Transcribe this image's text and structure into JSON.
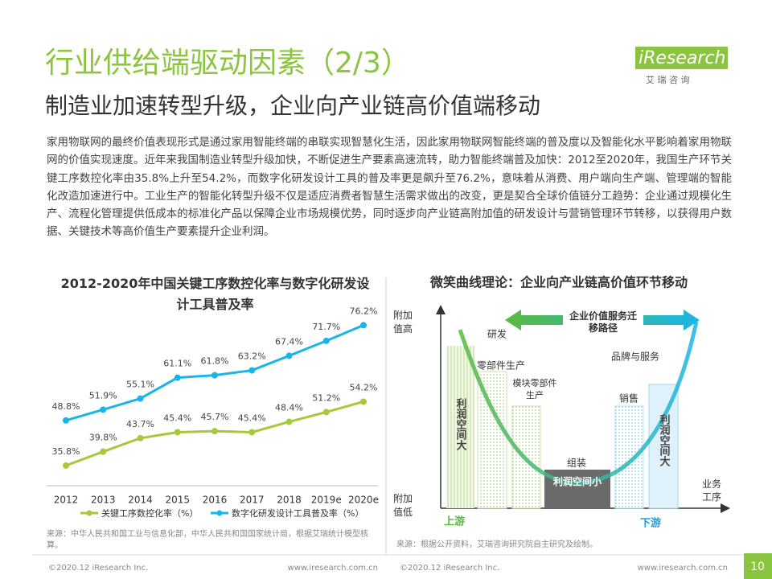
{
  "header": {
    "title": "行业供给端驱动因素（2/3）",
    "subtitle": "制造业加速转型升级，企业向产业链高价值端移动",
    "logo": "iResearch",
    "logo_sub": "艾 瑞 咨 询"
  },
  "body": "家用物联网的最终价值表现形式是通过家用智能终端的串联实现智慧化生活，因此家用物联网智能终端的普及度以及智能化水平影响着家用物联网的价值实现速度。近年来我国制造业转型升级加快，不断促进生产要素高速流转，助力智能终端普及加快：2012至2020年，我国生产环节关键工序数控化率由35.8%上升至54.2%，而数字化研发设计工具的普及率更是飙升至76.2%，意味着从消费、用户端向生产端、管理端的智能化改造加速进行中。工业生产的智能化转型升级不仅是适应消费者智慧生活需求做出的改变，更是契合全球价值链分工趋势：企业通过规模化生产、流程化管理提供低成本的标准化产品以保障企业市场规模优势，同时逐步向产业链高附加值的研发设计与营销管理环节转移，以获得用户数据、关键技术等高价值生产要素提升企业利润。",
  "chart_data": {
    "type": "line",
    "title": "2012-2020年中国关键工序数控化率与数字化研发设计工具普及率",
    "categories": [
      "2012",
      "2013",
      "2014",
      "2015",
      "2016",
      "2017",
      "2018",
      "2019e",
      "2020e"
    ],
    "ylim": [
      30,
      80
    ],
    "series": [
      {
        "name": "关键工序数控化率（%）",
        "color": "#a5c93b",
        "values": [
          35.8,
          39.8,
          43.7,
          45.4,
          45.7,
          45.4,
          48.4,
          51.2,
          54.2
        ],
        "value_labels": [
          "35.8%",
          "39.8%",
          "43.7%",
          "45.4%",
          "45.7%",
          "45.4%",
          "48.4%",
          "51.2%",
          "54.2%"
        ]
      },
      {
        "name": "数字化研发设计工具普及率（%）",
        "color": "#1ab5e8",
        "values": [
          48.8,
          51.9,
          55.1,
          61.1,
          61.8,
          63.2,
          67.4,
          71.7,
          76.2
        ],
        "value_labels": [
          "48.8%",
          "51.9%",
          "55.1%",
          "61.1%",
          "61.8%",
          "63.2%",
          "67.4%",
          "71.7%",
          "76.2%"
        ]
      }
    ],
    "legend": "bottom",
    "source": "来源：中华人民共和国工业与信息化部，中华人民共和国国家统计局，根据艾瑞统计模型核算。"
  },
  "diagram": {
    "title": "微笑曲线理论：企业向产业链高价值环节移动",
    "y_high": "附加值高",
    "y_low": "附加值低",
    "x_label": "业务工序",
    "upstream": "上游",
    "downstream": "下游",
    "path_label": "企业价值服务迁移路径",
    "stages": [
      "研发",
      "零部件生产",
      "模块零部件生产",
      "组装",
      "销售",
      "品牌与服务"
    ],
    "profit_big": "利润空间大",
    "profit_small": "利润空间小",
    "source": "来源：根据公开资料，艾瑞咨询研究院自主研究及绘制。"
  },
  "footer": {
    "copyright": "©2020.12 iResearch Inc.",
    "url": "www.iresearch.com.cn",
    "page": "10"
  }
}
